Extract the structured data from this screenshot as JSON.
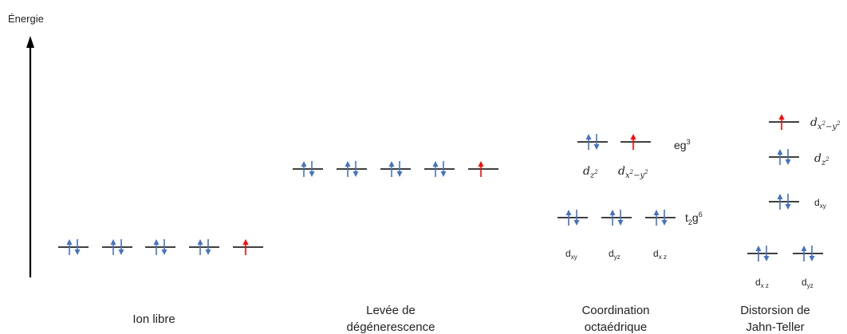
{
  "axis": {
    "label": "Énergie"
  },
  "colors": {
    "paired": "#4472C4",
    "unpaired": "#FF0000",
    "level": "#000000"
  },
  "stages": [
    {
      "caption": [
        "Ion libre"
      ]
    },
    {
      "caption": [
        "Levée de",
        "dégénerescence"
      ]
    },
    {
      "caption": [
        "Coordination",
        "octaédrique"
      ]
    },
    {
      "caption": [
        "Distorsion de",
        "Jahn-Teller"
      ]
    }
  ],
  "octahedral": {
    "eg_label": {
      "base": "eg",
      "sup": "3"
    },
    "t2g_label": {
      "base": "t",
      "sub": "2",
      "mid": "g",
      "sup": "6"
    },
    "orbitals": {
      "dz2": {
        "base": "d",
        "sub": "z",
        "subsup": "2"
      },
      "dx2y2": {
        "base": "d",
        "sub": "x",
        "subsup": "2",
        "tail": "−y",
        "tailsup": "2"
      },
      "dxy": {
        "base": "d",
        "sub": "xy"
      },
      "dyz": {
        "base": "d",
        "sub": "yz"
      },
      "dxz": {
        "base": "d",
        "sub": "x z"
      }
    }
  },
  "jahn_teller": {
    "orbitals": {
      "dx2y2": {
        "base": "d",
        "sub": "x",
        "subsup": "2",
        "tail": "−y",
        "tailsup": "2"
      },
      "dz2": {
        "base": "d",
        "sub": "z",
        "subsup": "2"
      },
      "dxy": {
        "base": "d",
        "sub": "xy"
      },
      "dxz": {
        "base": "d",
        "sub": "x z"
      },
      "dyz": {
        "base": "d",
        "sub": "yz"
      }
    }
  }
}
